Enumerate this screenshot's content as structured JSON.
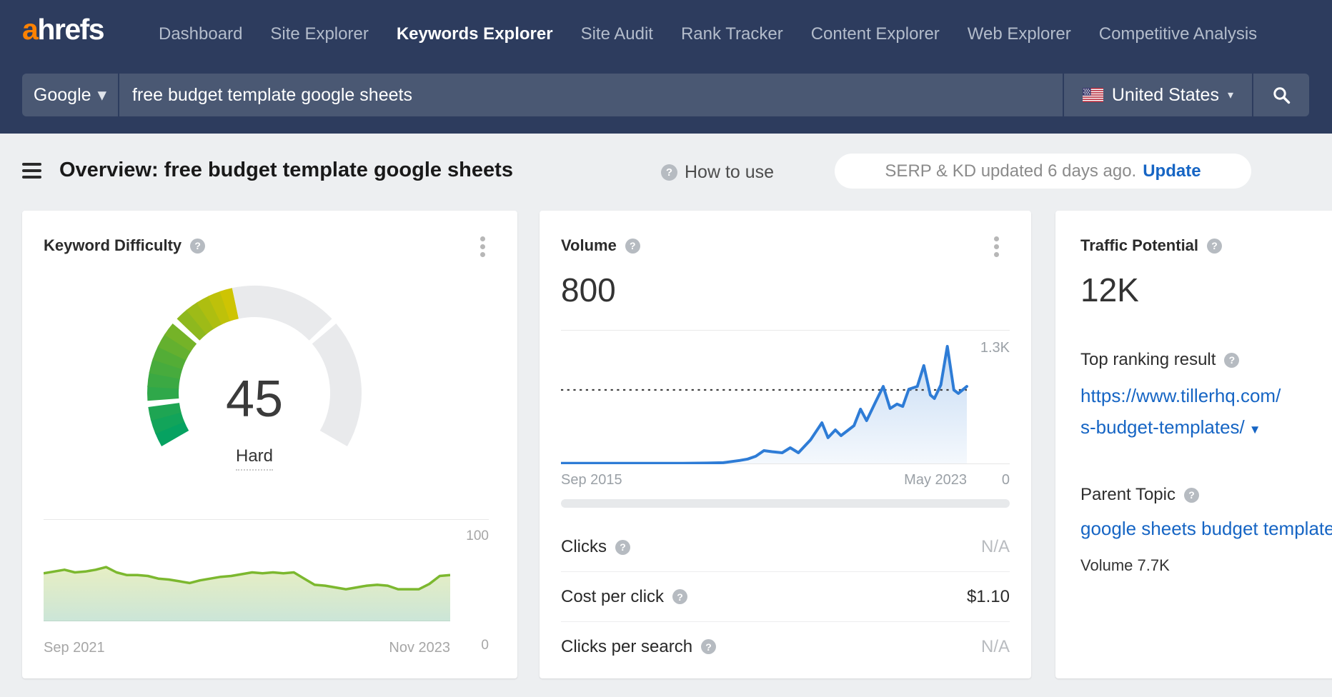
{
  "nav": {
    "logo_a": "a",
    "logo_rest": "hrefs",
    "items": [
      {
        "label": "Dashboard",
        "active": false
      },
      {
        "label": "Site Explorer",
        "active": false
      },
      {
        "label": "Keywords Explorer",
        "active": true
      },
      {
        "label": "Site Audit",
        "active": false
      },
      {
        "label": "Rank Tracker",
        "active": false
      },
      {
        "label": "Content Explorer",
        "active": false
      },
      {
        "label": "Web Explorer",
        "active": false
      },
      {
        "label": "Competitive Analysis",
        "active": false
      }
    ]
  },
  "search": {
    "engine": "Google",
    "query": "free budget template google sheets",
    "country": "United States"
  },
  "overview": {
    "title": "Overview: free budget template google sheets",
    "help_label": "How to use",
    "update_status": "SERP & KD updated 6 days ago.",
    "update_action": "Update"
  },
  "cards": {
    "kd": {
      "title": "Keyword Difficulty",
      "value": "45",
      "difficulty_label": "Hard",
      "axis_top": "100",
      "axis_bottom": "0",
      "x_left": "Sep 2021",
      "x_right": "Nov 2023"
    },
    "volume": {
      "title": "Volume",
      "value": "800",
      "axis_top": "1.3K",
      "axis_bottom": "0",
      "x_left": "Sep 2015",
      "x_right": "May 2023",
      "rows": [
        {
          "label": "Clicks",
          "value": "N/A",
          "muted": true
        },
        {
          "label": "Cost per click",
          "value": "$1.10",
          "muted": false
        },
        {
          "label": "Clicks per search",
          "value": "N/A",
          "muted": true
        }
      ]
    },
    "tp": {
      "title": "Traffic Potential",
      "value": "12K",
      "top_ranking_label": "Top ranking result",
      "link_line1": "https://www.tillerhq.com/",
      "link_line2": "s-budget-templates/",
      "parent_topic_label": "Parent Topic",
      "parent_topic_link": "google sheets budget template",
      "parent_volume": "Volume 7.7K"
    }
  },
  "chart_data": [
    {
      "type": "gauge",
      "title": "Keyword Difficulty",
      "value": 45,
      "max": 100,
      "label": "Hard",
      "segment_boundaries": [
        10,
        30,
        70
      ],
      "color_stops": [
        [
          0,
          "#00a164"
        ],
        [
          22,
          "#55ad35"
        ],
        [
          45,
          "#d6c600"
        ]
      ],
      "track_color": "#e9eaec"
    },
    {
      "type": "area",
      "title": "Keyword Difficulty history",
      "x_range": [
        "Sep 2021",
        "Nov 2023"
      ],
      "ylim": [
        0,
        100
      ],
      "line_color": "#7cb82f",
      "values": [
        53,
        55,
        57,
        54,
        55,
        57,
        60,
        54,
        51,
        51,
        50,
        47,
        46,
        44,
        42,
        45,
        47,
        49,
        50,
        52,
        54,
        53,
        54,
        53,
        54,
        47,
        40,
        39,
        37,
        35,
        37,
        39,
        40,
        39,
        35,
        35,
        35,
        41,
        50,
        51
      ]
    },
    {
      "type": "area",
      "title": "Search volume history",
      "x_range": [
        "Sep 2015",
        "May 2023"
      ],
      "ylim": [
        0,
        1300
      ],
      "reference_line": 800,
      "line_color": "#2e7cd6",
      "points": [
        [
          0,
          10
        ],
        [
          0.06,
          10
        ],
        [
          0.12,
          10
        ],
        [
          0.18,
          10
        ],
        [
          0.24,
          10
        ],
        [
          0.3,
          10
        ],
        [
          0.36,
          12
        ],
        [
          0.4,
          16
        ],
        [
          0.44,
          40
        ],
        [
          0.46,
          55
        ],
        [
          0.48,
          85
        ],
        [
          0.5,
          146
        ],
        [
          0.52,
          135
        ],
        [
          0.545,
          123
        ],
        [
          0.565,
          177
        ],
        [
          0.585,
          123
        ],
        [
          0.615,
          262
        ],
        [
          0.643,
          446
        ],
        [
          0.658,
          285
        ],
        [
          0.676,
          369
        ],
        [
          0.69,
          308
        ],
        [
          0.722,
          415
        ],
        [
          0.738,
          593
        ],
        [
          0.753,
          469
        ],
        [
          0.775,
          669
        ],
        [
          0.794,
          838
        ],
        [
          0.811,
          600
        ],
        [
          0.828,
          648
        ],
        [
          0.842,
          622
        ],
        [
          0.857,
          808
        ],
        [
          0.878,
          838
        ],
        [
          0.894,
          1062
        ],
        [
          0.91,
          746
        ],
        [
          0.92,
          708
        ],
        [
          0.936,
          854
        ],
        [
          0.952,
          1269
        ],
        [
          0.968,
          800
        ],
        [
          0.979,
          762
        ],
        [
          1,
          838
        ]
      ]
    }
  ],
  "colors": {
    "nav_bg": "#2d3c5e",
    "accent_orange": "#ff8201",
    "link_blue": "#1665c4",
    "volume_line": "#2e7cd6",
    "kd_line": "#7cb82f",
    "gauge_green": "#00a164",
    "gauge_yellow": "#d6c600",
    "gauge_track": "#e9eaec"
  }
}
